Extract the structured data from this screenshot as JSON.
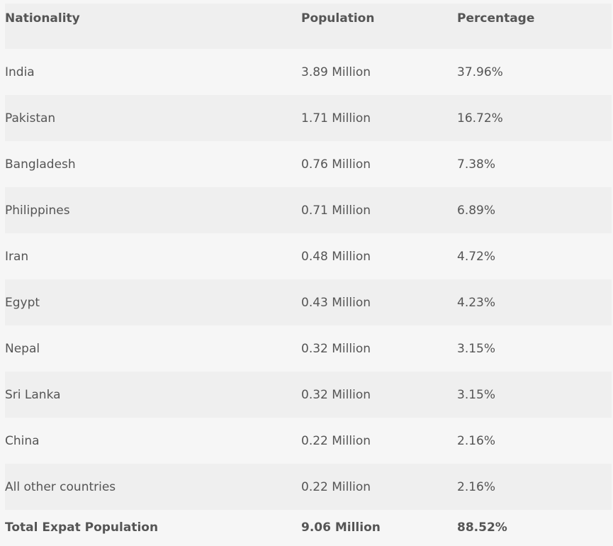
{
  "table": {
    "headers": [
      "Nationality",
      "Population",
      "Percentage"
    ],
    "rows": [
      [
        "India",
        "3.89 Million",
        "37.96%"
      ],
      [
        "Pakistan",
        "1.71 Million",
        "16.72%"
      ],
      [
        "Bangladesh",
        "0.76 Million",
        "7.38%"
      ],
      [
        "Philippines",
        "0.71 Million",
        "6.89%"
      ],
      [
        "Iran",
        "0.48 Million",
        "4.72%"
      ],
      [
        "Egypt",
        "0.43 Million",
        "4.23%"
      ],
      [
        "Nepal",
        "0.32 Million",
        "3.15%"
      ],
      [
        "Sri Lanka",
        "0.32 Million",
        "3.15%"
      ],
      [
        "China",
        "0.22 Million",
        "2.16%"
      ],
      [
        "All other countries",
        "0.22 Million",
        "2.16%"
      ]
    ],
    "total": [
      "Total Expat Population",
      "9.06 Million",
      "88.52%"
    ]
  },
  "colors": {
    "text": "#555555",
    "row_shaded": "#efefef",
    "row_plain": "#f6f6f6"
  }
}
